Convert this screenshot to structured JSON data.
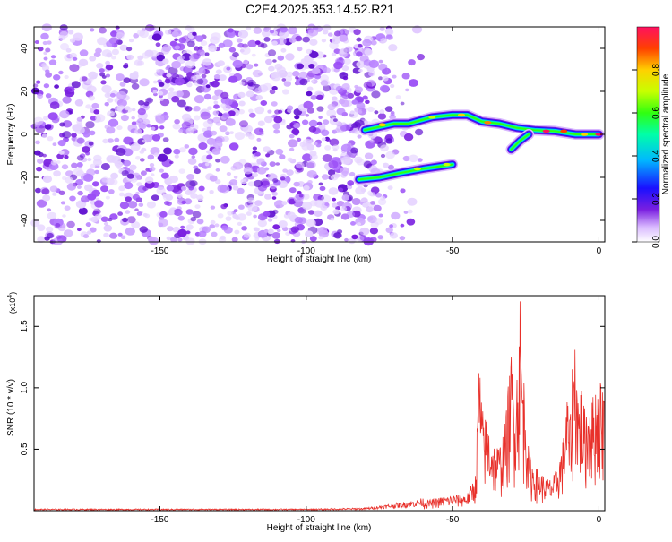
{
  "title": "C2E4.2025.353.14.52.R21",
  "chart_data": [
    {
      "type": "heatmap",
      "name": "spectrogram",
      "xlabel": "Height of straight line (km)",
      "ylabel": "Frequency (Hz)",
      "xlim": [
        -193,
        2
      ],
      "ylim": [
        -50,
        50
      ],
      "xticks": [
        -150,
        -100,
        -50,
        0
      ],
      "yticks": [
        -40,
        -20,
        0,
        20,
        40
      ],
      "colorbar": {
        "label": "Normalized spectral amplitude",
        "range": [
          0,
          1
        ],
        "ticks": [
          "0.0",
          "0.2",
          "0.4",
          "0.6",
          "0.8"
        ],
        "tick_values": [
          0,
          0.2,
          0.4,
          0.6,
          0.8
        ]
      },
      "noise_region_x": [
        -193,
        -70
      ],
      "signal_tracks": [
        {
          "name": "upper-track",
          "points": [
            [
              -80,
              2
            ],
            [
              -70,
              5
            ],
            [
              -65,
              5
            ],
            [
              -57,
              8
            ],
            [
              -50,
              9
            ],
            [
              -45,
              9
            ],
            [
              -40,
              6
            ],
            [
              -34,
              5
            ],
            [
              -28,
              3
            ],
            [
              -22,
              2
            ],
            [
              -15,
              1.5
            ],
            [
              -8,
              0
            ],
            [
              0,
              0
            ]
          ]
        },
        {
          "name": "lower-track",
          "points": [
            [
              -82,
              -21
            ],
            [
              -75,
              -20
            ],
            [
              -68,
              -18
            ],
            [
              -60,
              -16
            ],
            [
              -55,
              -15
            ],
            [
              -50,
              -14
            ]
          ]
        },
        {
          "name": "branch-track",
          "points": [
            [
              -30,
              -7
            ],
            [
              -27,
              -3
            ],
            [
              -24,
              0
            ]
          ]
        }
      ]
    },
    {
      "type": "line",
      "name": "snr",
      "xlabel": "Height of straight line (km)",
      "ylabel": "SNR (10 * v/v)",
      "yunit_multiplier": "(x10",
      "yunit_exponent": "4",
      "yunit_close": ")",
      "xlim": [
        -193,
        2
      ],
      "ylim": [
        0,
        1.75
      ],
      "xticks": [
        -150,
        -100,
        -50,
        0
      ],
      "yticks": [
        0.5,
        1.0,
        1.5
      ],
      "ytick_labels": [
        "0.5",
        "1.0",
        "1.5"
      ],
      "color": "#e8302a",
      "envelope": {
        "x": [
          -193,
          -100,
          -80,
          -70,
          -62,
          -55,
          -50,
          -45,
          -42,
          -41,
          -40,
          -38,
          -36,
          -34,
          -32,
          -30,
          -29,
          -28,
          -27,
          -26,
          -25,
          -24,
          -22,
          -20,
          -18,
          -16,
          -14,
          -12,
          -11,
          -10,
          -9,
          -8,
          -7,
          -6,
          -5,
          -4,
          -3,
          -2,
          -1,
          0,
          2
        ],
        "y": [
          0.01,
          0.01,
          0.015,
          0.04,
          0.06,
          0.1,
          0.12,
          0.13,
          0.3,
          1.35,
          0.8,
          0.7,
          0.55,
          0.5,
          0.7,
          1.25,
          1.05,
          1.15,
          1.75,
          1.1,
          1.0,
          0.45,
          0.35,
          0.3,
          0.25,
          0.25,
          0.35,
          0.6,
          0.95,
          0.7,
          1.2,
          1.45,
          0.9,
          1.0,
          0.8,
          0.85,
          0.95,
          0.9,
          1.0,
          1.05,
          1.0
        ]
      }
    }
  ]
}
